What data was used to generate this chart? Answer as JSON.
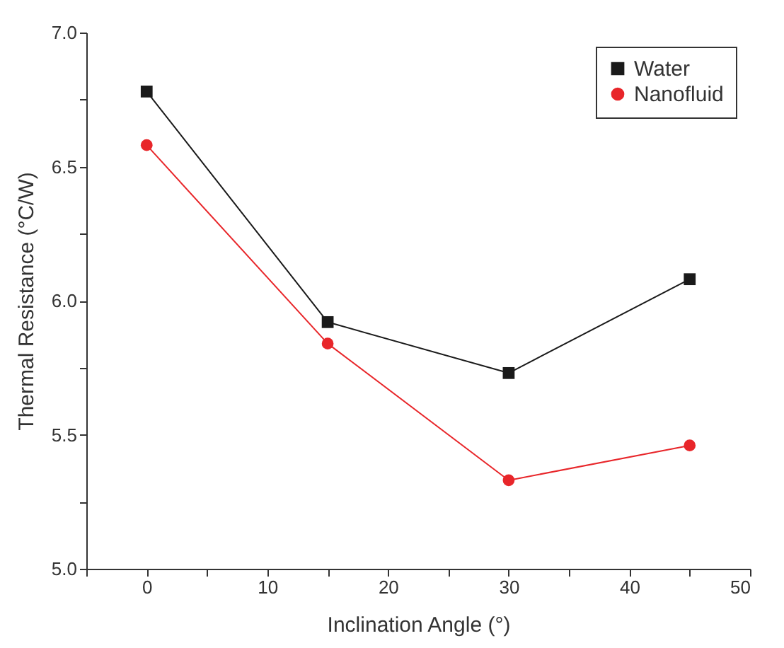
{
  "chart_data": {
    "type": "line",
    "xlabel": "Inclination Angle (°)",
    "ylabel": "Thermal Resistance (°C/W)",
    "x": [
      0,
      15,
      30,
      45
    ],
    "series": [
      {
        "name": "Water",
        "color": "#1a1a1a",
        "marker": "square",
        "values": [
          6.78,
          5.92,
          5.73,
          6.08
        ]
      },
      {
        "name": "Nanofluid",
        "color": "#e8262a",
        "marker": "circle",
        "values": [
          6.58,
          5.84,
          5.33,
          5.46
        ]
      }
    ],
    "xlim": [
      -5,
      50
    ],
    "xticks": [
      {
        "value": -5,
        "label": null
      },
      0,
      {
        "value": 5,
        "label": null
      },
      10,
      {
        "value": 15,
        "label": null
      },
      20,
      {
        "value": 25,
        "label": null
      },
      30,
      {
        "value": 35,
        "label": null
      },
      40,
      {
        "value": 45,
        "label": null
      },
      50
    ],
    "ylim": [
      5.0,
      7.0
    ],
    "yticks": [
      {
        "value": 5.0,
        "label": "5.0"
      },
      {
        "value": 5.25,
        "label": null
      },
      {
        "value": 5.5,
        "label": "5.5"
      },
      {
        "value": 5.75,
        "label": null
      },
      {
        "value": 6.0,
        "label": "6.0"
      },
      {
        "value": 6.25,
        "label": null
      },
      {
        "value": 6.5,
        "label": "6.5"
      },
      {
        "value": 6.75,
        "label": null
      },
      {
        "value": 7.0,
        "label": "7.0"
      }
    ],
    "grid": false,
    "legend": "top right",
    "line_style": "solid"
  }
}
